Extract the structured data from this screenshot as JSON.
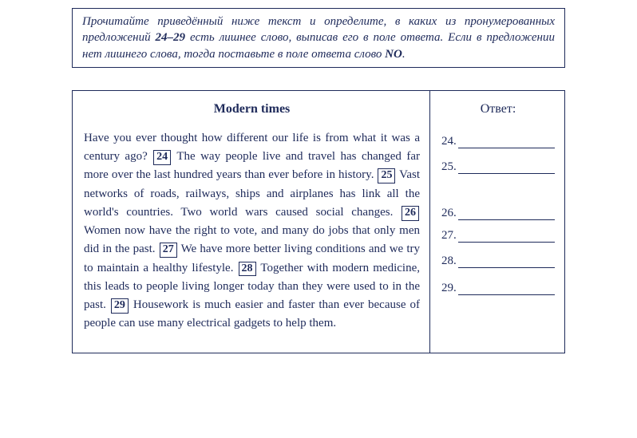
{
  "instructions": {
    "pre_text": "Прочитайте приведённый ниже текст и определите, в каких из пронумерованных предложений ",
    "range": "24–29",
    "mid_text": " есть лишнее слово, выписав его в поле ответа. Если в предложении нет лишнего слова, тогда поставьте в поле ответа слово ",
    "no_word": "NO",
    "end_text": "."
  },
  "exercise": {
    "title": "Modern times",
    "answer_label": "Ответ:",
    "segments": {
      "s0": "Have you ever thought how different our life is from what it was a century ago? ",
      "n24": "24",
      "s1": " The way people live and travel has changed far more over the last hundred years than ever before in history. ",
      "n25": "25",
      "s2": " Vast networks of roads, railways, ships and airplanes has link all the world's countries. Two world wars caused social changes. ",
      "n26": "26",
      "s3": " Women now have the right to vote, and many do jobs that only men did in the past. ",
      "n27": "27",
      "s4": " We have more better living conditions and we try to maintain a healthy lifestyle. ",
      "n28": "28",
      "s5": " Together with modern medicine, this leads to people living longer today than they were used to in the past. ",
      "n29": "29",
      "s6": " Housework is much easier and faster than ever because of people can use many electrical gadgets to help them."
    },
    "answers": [
      {
        "num": "24."
      },
      {
        "num": "25."
      },
      {
        "num": "26."
      },
      {
        "num": "27."
      },
      {
        "num": "28."
      },
      {
        "num": "29."
      }
    ]
  },
  "style": {
    "text_color": "#1e2a5a",
    "border_color": "#1e2a5a",
    "background": "#ffffff",
    "font_family": "Times New Roman",
    "base_font_size_pt": 11
  }
}
